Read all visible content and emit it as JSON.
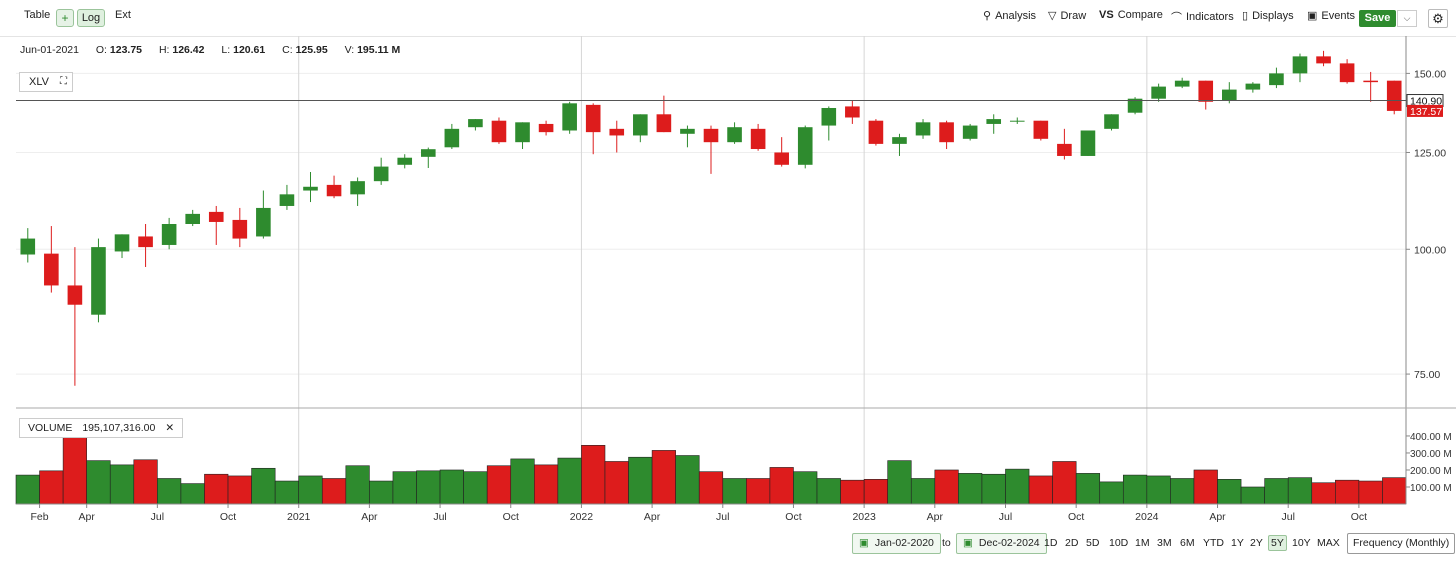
{
  "toolbar": {
    "table": "Table",
    "log": "Log",
    "ext": "Ext",
    "analysis": "Analysis",
    "draw": "Draw",
    "compare": "Compare",
    "indicators": "Indicators",
    "displays": "Displays",
    "events": "Events",
    "save": "Save"
  },
  "ohlc": {
    "date": "Jun-01-2021",
    "o_label": "O:",
    "o": "123.75",
    "h_label": "H:",
    "h": "126.42",
    "l_label": "L:",
    "l": "120.61",
    "c_label": "C:",
    "c": "125.95",
    "v_label": "V:",
    "v": "195.11 M"
  },
  "symbol": "XLV",
  "volume_legend": {
    "label": "VOLUME",
    "value": "195,107,316.00"
  },
  "range": {
    "start": "Jan-02-2020",
    "to": "to",
    "end": "Dec-02-2024",
    "buttons": [
      "1D",
      "2D",
      "5D",
      "10D",
      "1M",
      "3M",
      "6M",
      "YTD",
      "1Y",
      "2Y",
      "5Y",
      "10Y",
      "MAX"
    ],
    "selected": "5Y",
    "frequency": "Frequency (Monthly)"
  },
  "colors": {
    "up": "#2e8b2e",
    "down": "#dd1c1c"
  },
  "chart_data": {
    "type": "candlestick",
    "scale": "log",
    "ylim": [
      70,
      162
    ],
    "price_ticks": [
      "75.00",
      "100.00",
      "125.00",
      "150.00"
    ],
    "price_tick_values": [
      75,
      100,
      125,
      150
    ],
    "current_price_label": "140.90",
    "last_close_label": "137.57",
    "current_price": 140.9,
    "last_close": 137.57,
    "x_labels": [
      "Feb",
      "Apr",
      "Jul",
      "Oct",
      "2021",
      "Apr",
      "Jul",
      "Oct",
      "2022",
      "Apr",
      "Jul",
      "Oct",
      "2023",
      "Apr",
      "Jul",
      "Oct",
      "2024",
      "Apr",
      "Jul",
      "Oct"
    ],
    "volume_ticks": [
      "100.00 M",
      "200.00 M",
      "300.00 M",
      "400.00 M"
    ],
    "volume_tick_values": [
      100,
      200,
      300,
      400
    ],
    "candles": [
      {
        "o": 98.8,
        "h": 105,
        "l": 97,
        "c": 102.5,
        "v": 170
      },
      {
        "o": 99,
        "h": 105.5,
        "l": 90.5,
        "c": 92,
        "v": 195
      },
      {
        "o": 92,
        "h": 100.5,
        "l": 73,
        "c": 88,
        "v": 390
      },
      {
        "o": 86,
        "h": 102.5,
        "l": 84.5,
        "c": 100.5,
        "v": 255
      },
      {
        "o": 99.5,
        "h": 103.5,
        "l": 98,
        "c": 103.5,
        "v": 230
      },
      {
        "o": 103,
        "h": 106,
        "l": 96,
        "c": 100.5,
        "v": 260
      },
      {
        "o": 101,
        "h": 107.5,
        "l": 100,
        "c": 106,
        "v": 150
      },
      {
        "o": 106,
        "h": 109.5,
        "l": 105.5,
        "c": 108.5,
        "v": 120
      },
      {
        "o": 109,
        "h": 110.5,
        "l": 101,
        "c": 106.5,
        "v": 175
      },
      {
        "o": 107,
        "h": 110,
        "l": 100.5,
        "c": 102.5,
        "v": 165
      },
      {
        "o": 103,
        "h": 114.5,
        "l": 102.5,
        "c": 110,
        "v": 210
      },
      {
        "o": 110.5,
        "h": 116,
        "l": 109.5,
        "c": 113.5,
        "v": 135
      },
      {
        "o": 114.5,
        "h": 119.5,
        "l": 111.5,
        "c": 115.5,
        "v": 165
      },
      {
        "o": 116,
        "h": 118.5,
        "l": 112.5,
        "c": 113,
        "v": 150
      },
      {
        "o": 113.5,
        "h": 118,
        "l": 110.5,
        "c": 117,
        "v": 225
      },
      {
        "o": 117,
        "h": 123.5,
        "l": 116,
        "c": 121,
        "v": 135
      },
      {
        "o": 121.5,
        "h": 124.5,
        "l": 120.5,
        "c": 123.5,
        "v": 190
      },
      {
        "o": 123.75,
        "h": 126.42,
        "l": 120.61,
        "c": 125.95,
        "v": 195.11
      },
      {
        "o": 126.5,
        "h": 133.5,
        "l": 126,
        "c": 132,
        "v": 200
      },
      {
        "o": 132.5,
        "h": 135,
        "l": 131.5,
        "c": 135,
        "v": 190
      },
      {
        "o": 134.5,
        "h": 135.5,
        "l": 127.5,
        "c": 128,
        "v": 225
      },
      {
        "o": 128,
        "h": 134,
        "l": 126,
        "c": 134,
        "v": 265
      },
      {
        "o": 133.5,
        "h": 134.5,
        "l": 130,
        "c": 131,
        "v": 230
      },
      {
        "o": 131.5,
        "h": 140.5,
        "l": 130.5,
        "c": 140,
        "v": 270
      },
      {
        "o": 139.5,
        "h": 140,
        "l": 124.5,
        "c": 131,
        "v": 345
      },
      {
        "o": 132,
        "h": 134.5,
        "l": 125,
        "c": 130,
        "v": 250
      },
      {
        "o": 130,
        "h": 136.5,
        "l": 128,
        "c": 136.5,
        "v": 275
      },
      {
        "o": 136.5,
        "h": 142.5,
        "l": 131,
        "c": 131,
        "v": 315
      },
      {
        "o": 130.5,
        "h": 133,
        "l": 126.5,
        "c": 132,
        "v": 285
      },
      {
        "o": 132,
        "h": 133,
        "l": 119,
        "c": 128,
        "v": 190
      },
      {
        "o": 128,
        "h": 134,
        "l": 127.5,
        "c": 132.5,
        "v": 150
      },
      {
        "o": 132,
        "h": 133.5,
        "l": 125.5,
        "c": 126,
        "v": 150
      },
      {
        "o": 125,
        "h": 129.5,
        "l": 121,
        "c": 121.5,
        "v": 215
      },
      {
        "o": 121.5,
        "h": 133,
        "l": 120.5,
        "c": 132.5,
        "v": 190
      },
      {
        "o": 133,
        "h": 139,
        "l": 128.5,
        "c": 138.5,
        "v": 150
      },
      {
        "o": 139,
        "h": 141,
        "l": 133.5,
        "c": 135.5,
        "v": 140
      },
      {
        "o": 134.5,
        "h": 135,
        "l": 127,
        "c": 127.5,
        "v": 145
      },
      {
        "o": 127.5,
        "h": 130.5,
        "l": 124,
        "c": 129.5,
        "v": 255
      },
      {
        "o": 130,
        "h": 135,
        "l": 129,
        "c": 134,
        "v": 150
      },
      {
        "o": 134,
        "h": 134.5,
        "l": 126,
        "c": 128,
        "v": 200
      },
      {
        "o": 129,
        "h": 133.5,
        "l": 128.5,
        "c": 133,
        "v": 180
      },
      {
        "o": 133.5,
        "h": 136.5,
        "l": 130.5,
        "c": 135,
        "v": 175
      },
      {
        "o": 134.5,
        "h": 135.5,
        "l": 133.5,
        "c": 134.5,
        "v": 205
      },
      {
        "o": 134.5,
        "h": 134.5,
        "l": 128.5,
        "c": 129,
        "v": 165
      },
      {
        "o": 127.5,
        "h": 132,
        "l": 123,
        "c": 124,
        "v": 250
      },
      {
        "o": 124,
        "h": 131.5,
        "l": 124,
        "c": 131.5,
        "v": 180
      },
      {
        "o": 132,
        "h": 136.5,
        "l": 131.5,
        "c": 136.5,
        "v": 130
      },
      {
        "o": 137,
        "h": 142,
        "l": 136.5,
        "c": 141.5,
        "v": 170
      },
      {
        "o": 141.5,
        "h": 146.5,
        "l": 140.5,
        "c": 145.5,
        "v": 165
      },
      {
        "o": 145.5,
        "h": 148.5,
        "l": 145,
        "c": 147.5,
        "v": 150
      },
      {
        "o": 147.5,
        "h": 147.5,
        "l": 138,
        "c": 140.5,
        "v": 200
      },
      {
        "o": 141,
        "h": 147,
        "l": 140,
        "c": 144.5,
        "v": 145
      },
      {
        "o": 144.5,
        "h": 147,
        "l": 143.5,
        "c": 146.5,
        "v": 100
      },
      {
        "o": 146,
        "h": 152,
        "l": 145,
        "c": 150,
        "v": 150
      },
      {
        "o": 150,
        "h": 157,
        "l": 147,
        "c": 156,
        "v": 155
      },
      {
        "o": 156,
        "h": 158,
        "l": 152.5,
        "c": 153.5,
        "v": 125
      },
      {
        "o": 153.5,
        "h": 155,
        "l": 146.5,
        "c": 147,
        "v": 140
      },
      {
        "o": 147.5,
        "h": 150.5,
        "l": 140.5,
        "c": 147,
        "v": 135
      },
      {
        "o": 147.5,
        "h": 147.5,
        "l": 136.5,
        "c": 137.57,
        "v": 155
      }
    ]
  }
}
